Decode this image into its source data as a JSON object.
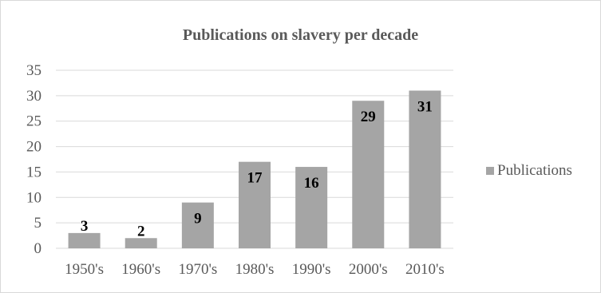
{
  "chart_data": {
    "type": "bar",
    "title": "Publications on slavery per decade",
    "xlabel": "",
    "ylabel": "",
    "categories": [
      "1950's",
      "1960's",
      "1970's",
      "1980's",
      "1990's",
      "2000's",
      "2010's"
    ],
    "series": [
      {
        "name": "Publications",
        "values": [
          3,
          2,
          9,
          17,
          16,
          29,
          31
        ]
      }
    ],
    "ylim": [
      0,
      35
    ],
    "yticks": [
      "0",
      "5",
      "10",
      "15",
      "20",
      "25",
      "30",
      "35"
    ],
    "grid": true,
    "legend": "right",
    "colors": {
      "bar": "#a5a5a5",
      "grid": "#d9d9d9",
      "text": "#595959",
      "data_label": "#000000"
    }
  }
}
